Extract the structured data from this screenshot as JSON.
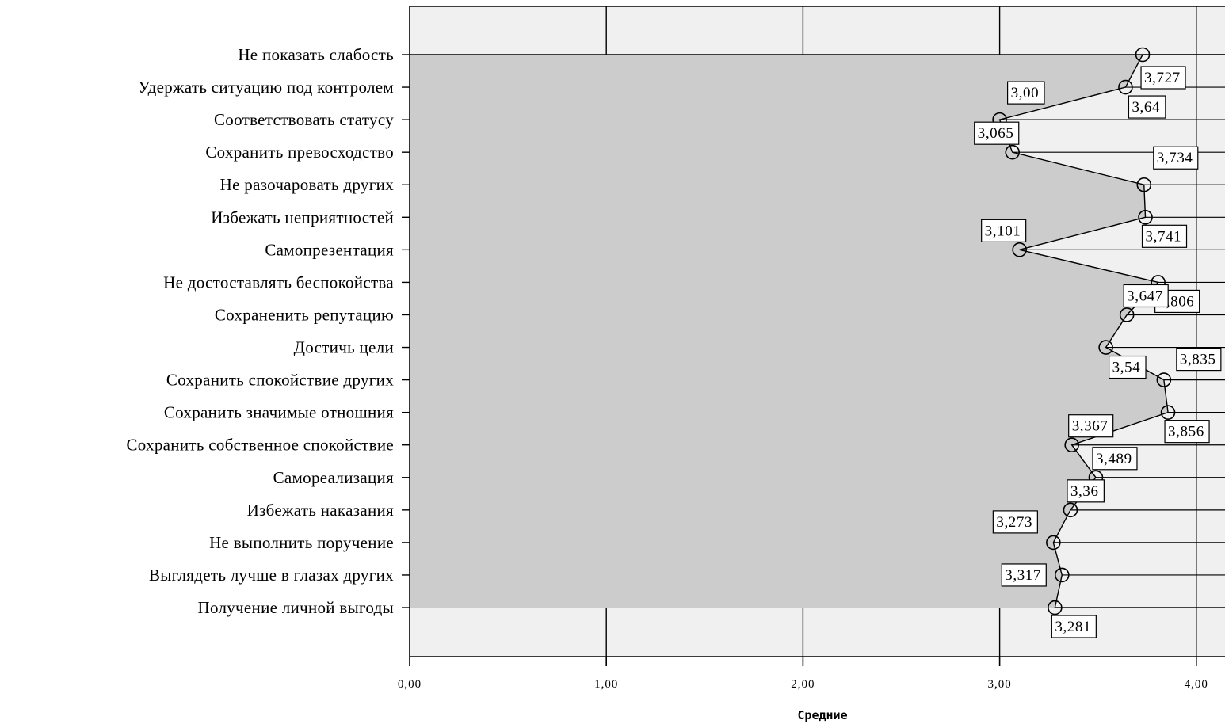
{
  "chart_data": {
    "type": "line",
    "orientation": "horizontal",
    "xlabel": "Средние",
    "xlim": [
      0,
      4
    ],
    "x_ticks": [
      "0,00",
      "1,00",
      "2,00",
      "3,00",
      "4,00"
    ],
    "categories": [
      "Не показать слабость",
      "Удержать ситуацию под контролем",
      "Соответствовать статусу",
      "Сохранить превосходство",
      "Не разочаровать других",
      "Избежать неприятностей",
      "Самопрезентация",
      "Не достоставлять беспокойства",
      "Сохраненить репутацию",
      "Достичь цели",
      "Сохранить  спокойствие других",
      "Сохранить значимые отношния",
      "Сохранить собственное спокойствие",
      "Самореализация",
      "Избежать наказания",
      "Не выполнить поручение",
      "Выглядеть лучше в глазах других",
      "Получение личной выгоды"
    ],
    "values": [
      3.727,
      3.64,
      3.0,
      3.065,
      3.734,
      3.741,
      3.101,
      3.806,
      3.647,
      3.54,
      3.835,
      3.856,
      3.367,
      3.489,
      3.36,
      3.273,
      3.317,
      3.281
    ],
    "data_labels": [
      "3,727",
      "3,64",
      "3,00",
      "3,065",
      "3,734",
      "3,741",
      "3,101",
      "3,806",
      "3,647",
      "3,54",
      "3,835",
      "3,856",
      "3,367",
      "3,489",
      "3,36",
      "3,273",
      "3,317",
      "3,281"
    ],
    "grid": true,
    "marker": "open-circle",
    "colors": {
      "plot_bg": "#f0f0f0",
      "fill": "#cccccc",
      "line": "#000000"
    }
  }
}
